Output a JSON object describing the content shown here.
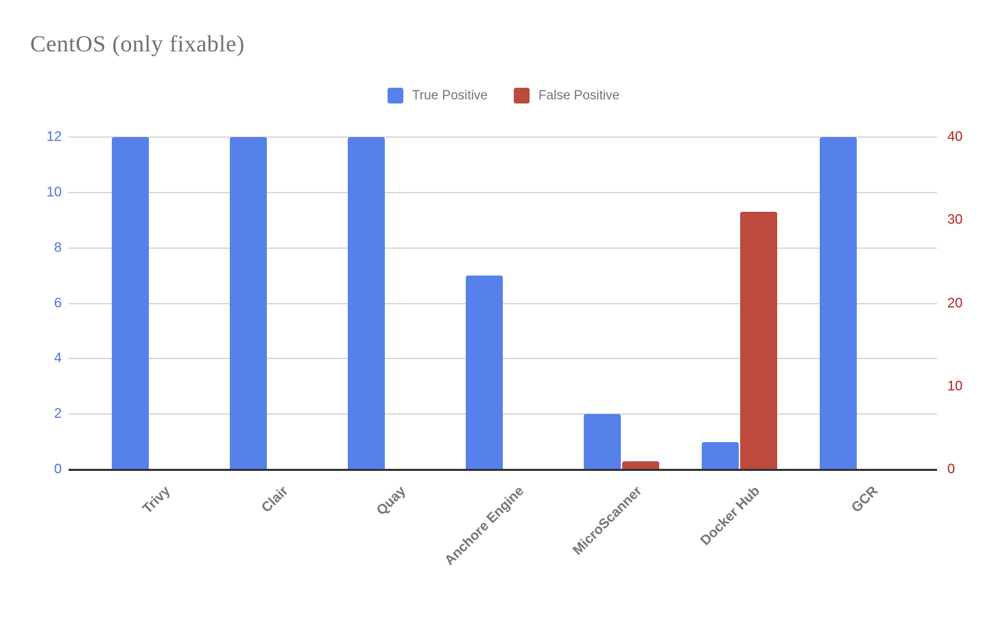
{
  "title": "CentOS (only fixable)",
  "legend": {
    "items": [
      {
        "label": "True Positive",
        "color": "#5781ea"
      },
      {
        "label": "False Positive",
        "color": "#be4a3e"
      }
    ]
  },
  "chart_data": {
    "type": "bar",
    "title": "CentOS (only fixable)",
    "categories": [
      "Trivy",
      "Clair",
      "Quay",
      "Anchore Engine",
      "MicroScanner",
      "Docker Hub",
      "GCR"
    ],
    "series": [
      {
        "name": "True Positive",
        "axis": "left",
        "color": "#5781ea",
        "values": [
          12,
          12,
          12,
          7,
          2,
          1,
          12
        ]
      },
      {
        "name": "False Positive",
        "axis": "right",
        "color": "#be4a3e",
        "values": [
          0,
          0,
          0,
          0,
          1,
          31,
          0
        ]
      }
    ],
    "left_axis": {
      "range": [
        0,
        12
      ],
      "ticks": [
        0,
        2,
        4,
        6,
        8,
        10,
        12
      ],
      "label_color": "#4d72d8"
    },
    "right_axis": {
      "range": [
        0,
        40
      ],
      "ticks": [
        0,
        10,
        20,
        30,
        40
      ],
      "label_color": "#b5201a"
    },
    "grid": true,
    "gridline_color": "#d9d9d9",
    "baseline_color": "#333333",
    "legend_position": "top",
    "category_label_color": "#757575",
    "xlabel": "",
    "ylabel": ""
  }
}
